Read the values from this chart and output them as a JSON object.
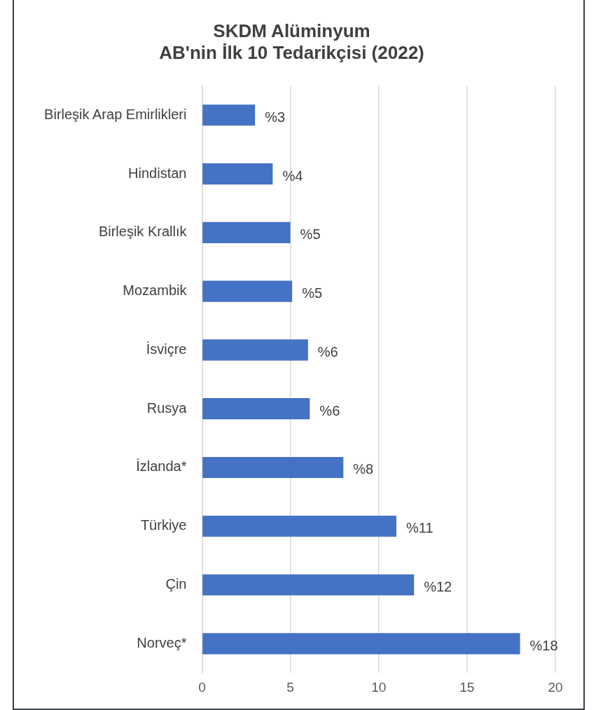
{
  "chart_data": {
    "type": "bar",
    "orientation": "horizontal",
    "title": "SKDM Alüminyum\nAB'nin İlk 10 Tedarikçisi (2022)",
    "categories": [
      "Birleşik Arap Emirlikleri",
      "Hindistan",
      "Birleşik Krallık",
      "Mozambik",
      "İsviçre",
      "Rusya",
      "İzlanda*",
      "Türkiye",
      "Çin",
      "Norveç*"
    ],
    "values": [
      3.0,
      4.0,
      5.0,
      5.1,
      6.0,
      6.1,
      8.0,
      11.0,
      12.0,
      18.0
    ],
    "value_labels": [
      "%3",
      "%4",
      "%5",
      "%5",
      "%6",
      "%6",
      "%8",
      "%11",
      "%12",
      "%18"
    ],
    "color": "#4472c4",
    "xlim": [
      0,
      20
    ],
    "xticks": [
      0,
      5,
      10,
      15,
      20
    ],
    "grid": "x",
    "legend": false
  }
}
